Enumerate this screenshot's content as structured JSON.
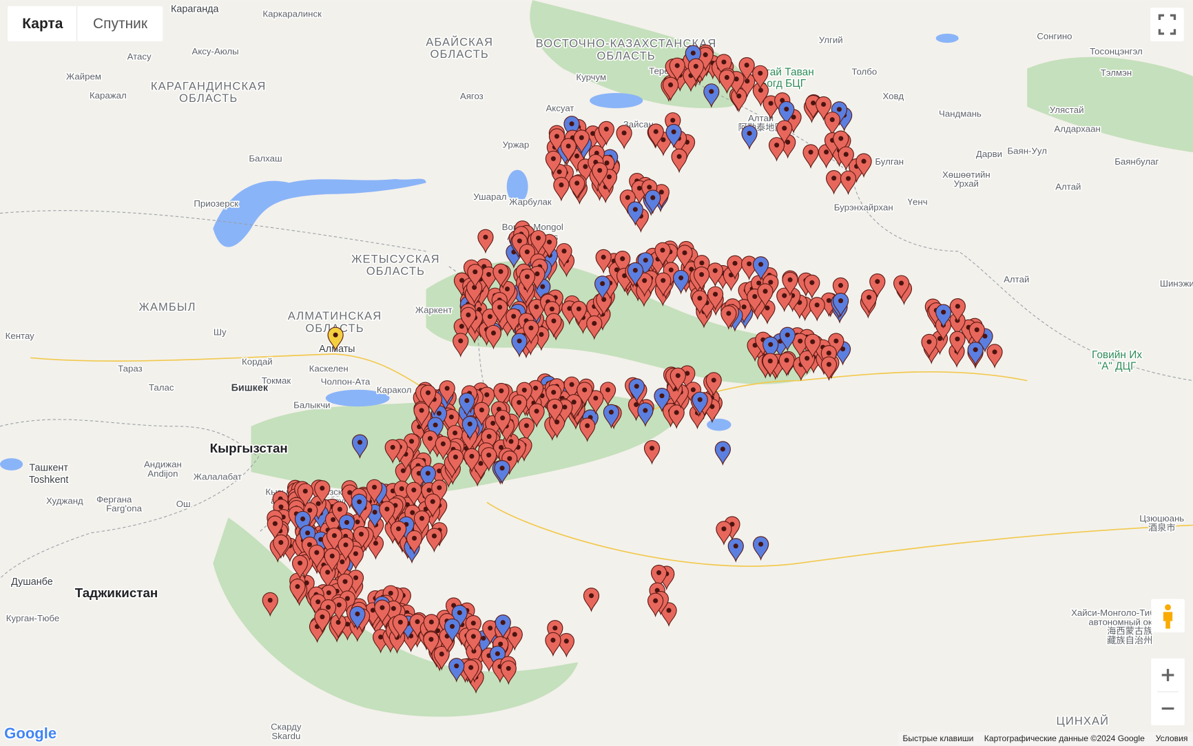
{
  "map_controls": {
    "map": "Карта",
    "satellite": "Спутник"
  },
  "labels": [
    "Караганда",
    "Каркаралинск",
    "Атасу",
    "Аксу-Аюлы",
    "Жайрем",
    "Каражал",
    "КАРАГАНДИНСКАЯ",
    "ОБЛАСТЬ",
    "АБАЙСКАЯ",
    "ОБЛАСТЬ",
    "ВОСТОЧНО-КАЗАХСТАНСКАЯ",
    "ОБЛАСТЬ",
    "Сонгино",
    "Тосонцэнгэл",
    "Тэлмэн",
    "Улгий",
    "Теректы",
    "Алтай Таван",
    "Богд БЦГ",
    "Толбо",
    "Ховд",
    "Чандмань",
    "Улястай",
    "Алдархаан",
    "Курчум",
    "Аягоз",
    "Аксуат",
    "Зайсан",
    "Алтай",
    "阿勒泰地区",
    "Уржар",
    "Балхаш",
    "Булган",
    "Дарви",
    "Баян-Уул",
    "Баянбулаг",
    "Хөшөөтийн",
    "Урхай",
    "Алтай",
    "Ушарал",
    "Жарбулак",
    "Приозерск",
    "Бурэнхайрхан",
    "Үенч",
    "Bortala Mongol",
    "Autonomous",
    "ЖЕТЫСУСКАЯ",
    "ОБЛАСТЬ",
    "Алтай",
    "Шинэжи",
    "ЖАМБЫЛ",
    "Жаркент",
    "АЛМАТИНСКАЯ",
    "ОБЛАСТЬ",
    "Шу",
    "Кентау",
    "Алматы",
    "Кордай",
    "Каскелен",
    "Тараз",
    "Токмак",
    "Чолпон-Ата",
    "Каракол",
    "Бишкек",
    "Талас",
    "Говийн Их",
    "\"А\" ДЦГ",
    "Балыкчи",
    "Кыргызстан",
    "Ташкент",
    "Toshkent",
    "Андижан",
    "Andijon",
    "Жалалабат",
    "Кызылсу-Киргизский",
    "автономный округ",
    "Худжанд",
    "Фергана",
    "Farg'ona",
    "Ош",
    "Цзюцюань",
    "酒泉市",
    "Душанбе",
    "Таджикистан",
    "Курган-Тюбе",
    "Хайси-Монголо-Тибетский",
    "автономный округ",
    "海西蒙古族",
    "藏族自治州",
    "ЦИНХАЙ",
    "Скарду",
    "Skardu"
  ],
  "footer": {
    "logo": "Google",
    "shortcuts": "Быстрые клавиши",
    "map_data": "Картографические данные ©2024 Google",
    "terms": "Условия"
  }
}
